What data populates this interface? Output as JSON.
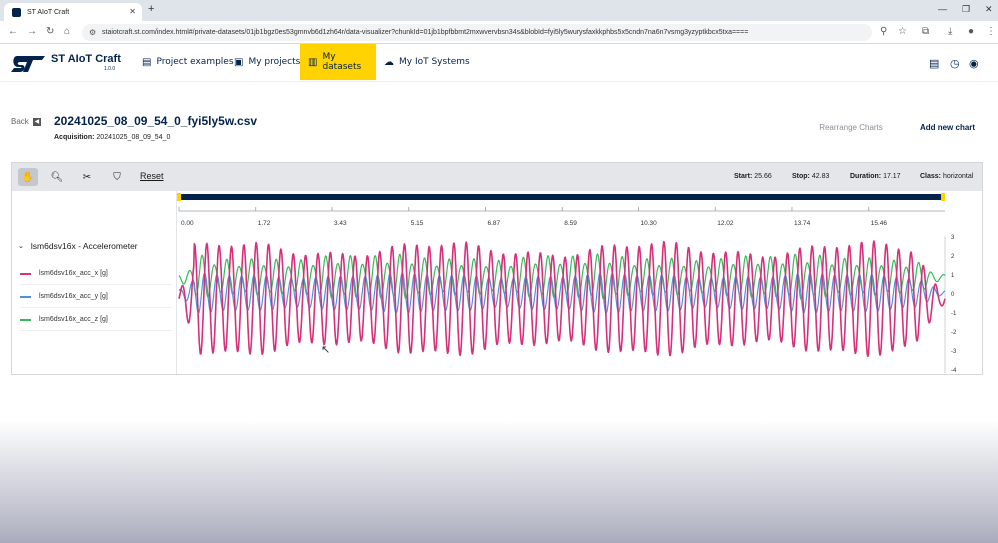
{
  "browser": {
    "tab_title": "ST AIoT Craft",
    "url": "staiotcraft.st.com/index.html#/private-datasets/01jb1bgz0es53gmnvb6d1zh64r/data-visualizer?chunkId=01jb1bpfbbmt2mxwvervbsn34s&blobId=fyi5ly5wurysfaxkkphbs5x5cndn7na6n7vsmg3yzyptkbcx5txa===="
  },
  "app": {
    "brand": "ST AIoT Craft",
    "version": "1.0.0",
    "nav": [
      {
        "label": "Project examples",
        "icon": "clipboard-icon"
      },
      {
        "label": "My projects",
        "icon": "folder-icon"
      },
      {
        "label": "My datasets",
        "icon": "chart-icon",
        "active": true
      },
      {
        "label": "My IoT Systems",
        "icon": "cloud-icon"
      }
    ],
    "accent": "#ffd200",
    "primary": "#03234b"
  },
  "page": {
    "back_label": "Back",
    "title": "20241025_08_09_54_0_fyi5ly5w.csv",
    "acquisition_label": "Acquisition:",
    "acquisition_value": "20241025_08_09_54_0",
    "rearrange_label": "Rearrange Charts",
    "add_chart_label": "Add new chart"
  },
  "toolbar": {
    "reset_label": "Reset",
    "start_label": "Start:",
    "start_value": "25.66",
    "stop_label": "Stop:",
    "stop_value": "42.83",
    "duration_label": "Duration:",
    "duration_value": "17.17",
    "class_label": "Class:",
    "class_value": "horizontal"
  },
  "sensor": {
    "group_label": "lsm6dsv16x - Accelerometer",
    "series": [
      {
        "name": "lsm6dsv16x_acc_x [g]",
        "color": "#d6307a"
      },
      {
        "name": "lsm6dsv16x_acc_y [g]",
        "color": "#4e93d6"
      },
      {
        "name": "lsm6dsv16x_acc_z [g]",
        "color": "#3bb85a"
      }
    ]
  },
  "chart_data": {
    "type": "line",
    "x_ticks": [
      "0.00",
      "1.72",
      "3.43",
      "5.15",
      "6.87",
      "8.59",
      "10.30",
      "12.02",
      "13.74",
      "15.46"
    ],
    "y_ticks": [
      "3",
      "2",
      "1",
      "0",
      "-1",
      "-2",
      "-3",
      "-4"
    ],
    "xlim": [
      0,
      17.17
    ],
    "ylim": [
      -4,
      3
    ],
    "cycles": 62,
    "series": [
      {
        "name": "lsm6dsv16x_acc_x [g]",
        "color": "#d6307a",
        "offset": -0.3,
        "amplitude": 2.6
      },
      {
        "name": "lsm6dsv16x_acc_y [g]",
        "color": "#4e93d6",
        "offset": 0.0,
        "amplitude": 0.9
      },
      {
        "name": "lsm6dsv16x_acc_z [g]",
        "color": "#3bb85a",
        "offset": 0.8,
        "amplitude": 1.1
      }
    ]
  }
}
